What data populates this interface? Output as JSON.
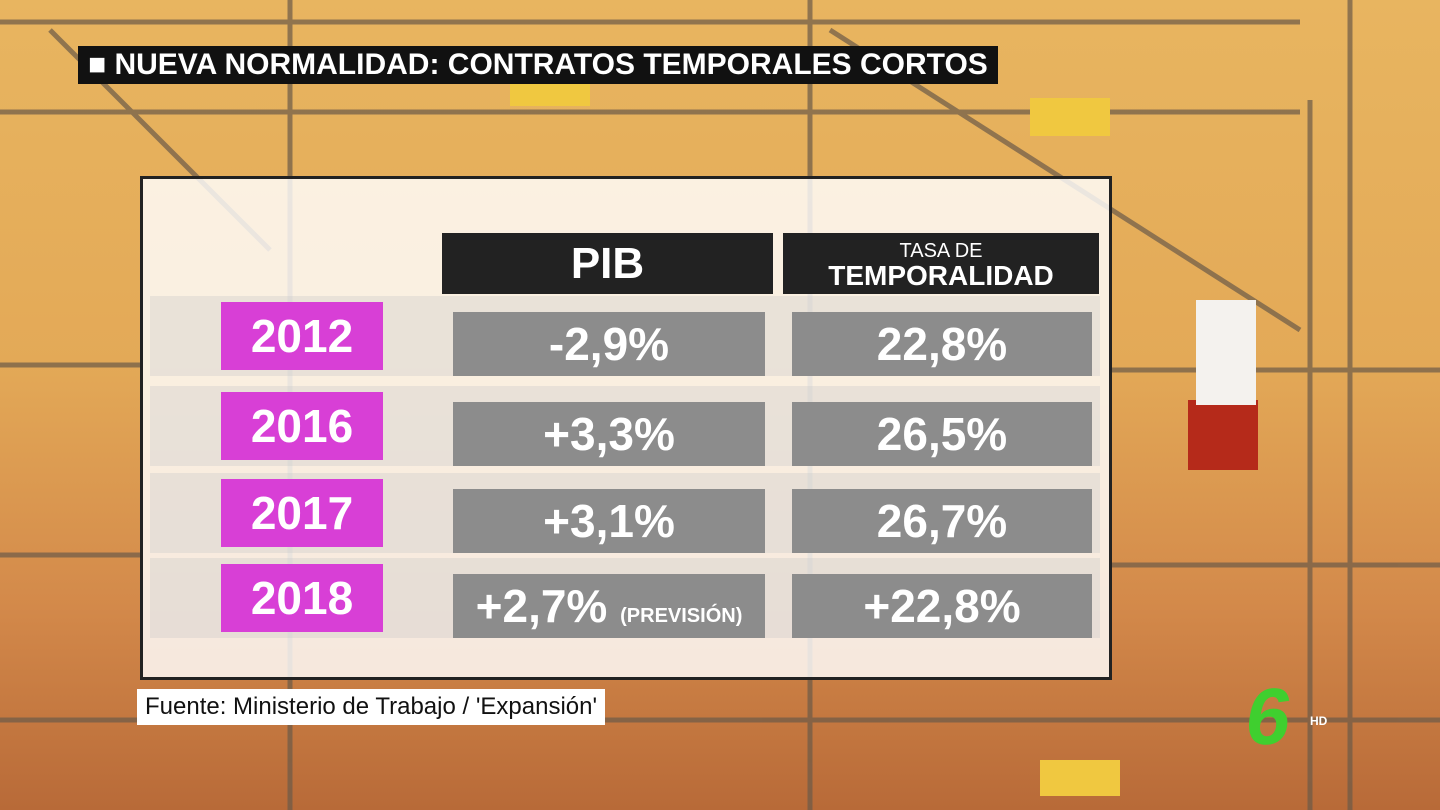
{
  "header": {
    "title": "NUEVA NORMALIDAD: CONTRATOS TEMPORALES CORTOS"
  },
  "table": {
    "columns": {
      "pib": "PIB",
      "tasa_top": "TASA DE",
      "tasa_bottom": "TEMPORALIDAD"
    },
    "rows": [
      {
        "year": "2012",
        "pib": "-2,9%",
        "tasa": "22,8%"
      },
      {
        "year": "2016",
        "pib": "+3,3%",
        "tasa": "26,5%"
      },
      {
        "year": "2017",
        "pib": "+3,1%",
        "tasa": "26,7%"
      },
      {
        "year": "2018",
        "pib": "+2,7%",
        "note": "(PREVISIÓN)",
        "tasa": "+22,8%"
      }
    ]
  },
  "source": "Fuente: Ministerio de Trabajo / 'Expansión'",
  "logo": {
    "mark": "6",
    "quality": "HD"
  }
}
